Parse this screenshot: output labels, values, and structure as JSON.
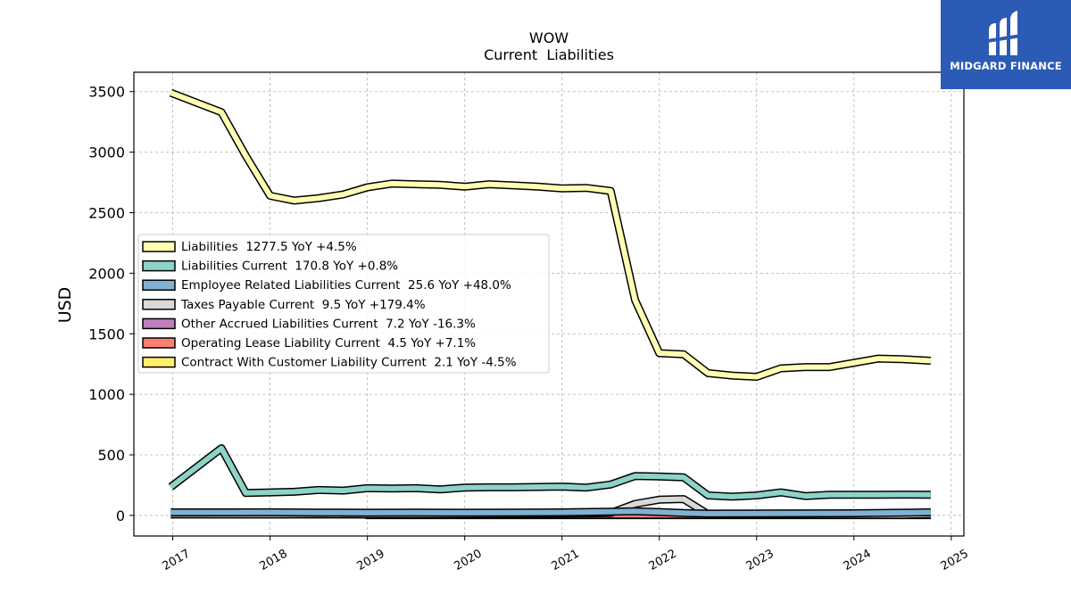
{
  "brand": {
    "name": "MIDGARD FINANCE",
    "color": "#2b5bb4"
  },
  "chart_data": {
    "type": "line",
    "title": "WOW",
    "subtitle": "Current  Liabilities",
    "ylabel": "USD",
    "xlabel": "",
    "ylim": [
      -170,
      3660
    ],
    "xlim": [
      2016.6,
      2025.13
    ],
    "grid": true,
    "legend_position": "center-left",
    "x_ticks": [
      2017,
      2018,
      2019,
      2020,
      2021,
      2022,
      2023,
      2024,
      2025
    ],
    "y_ticks": [
      0,
      500,
      1000,
      1500,
      2000,
      2500,
      3000,
      3500
    ],
    "series": [
      {
        "name": "Liabilities",
        "legend": "Liabilities  1277.5 YoY +4.5%",
        "color": "#ffffb3",
        "x": [
          2016.98,
          2017.5,
          2017.75,
          2018.0,
          2018.25,
          2018.5,
          2018.75,
          2019.0,
          2019.25,
          2019.5,
          2019.75,
          2020.0,
          2020.25,
          2020.5,
          2020.75,
          2021.0,
          2021.25,
          2021.5,
          2021.75,
          2022.0,
          2022.25,
          2022.5,
          2022.75,
          2023.0,
          2023.25,
          2023.5,
          2023.75,
          2024.0,
          2024.25,
          2024.5,
          2024.79
        ],
        "values": [
          3490,
          3330,
          2970,
          2640,
          2600,
          2620,
          2650,
          2710,
          2740,
          2735,
          2730,
          2715,
          2735,
          2725,
          2715,
          2700,
          2705,
          2680,
          1780,
          1340,
          1330,
          1175,
          1155,
          1145,
          1215,
          1225,
          1225,
          1260,
          1295,
          1290,
          1277.5
        ]
      },
      {
        "name": "Liabilities Current",
        "legend": "Liabilities Current  170.8 YoY +0.8%",
        "color": "#8dd3c7",
        "x": [
          2016.98,
          2017.5,
          2017.75,
          2018.0,
          2018.25,
          2018.5,
          2018.75,
          2019.0,
          2019.25,
          2019.5,
          2019.75,
          2020.0,
          2020.25,
          2020.5,
          2020.75,
          2021.0,
          2021.25,
          2021.5,
          2021.75,
          2022.0,
          2022.25,
          2022.5,
          2022.75,
          2023.0,
          2023.25,
          2023.5,
          2023.75,
          2024.0,
          2024.25,
          2024.5,
          2024.79
        ],
        "values": [
          235,
          555,
          185,
          190,
          195,
          210,
          205,
          225,
          222,
          225,
          215,
          230,
          232,
          232,
          235,
          238,
          230,
          255,
          325,
          322,
          315,
          165,
          155,
          165,
          190,
          160,
          170,
          170,
          170,
          172,
          170.8
        ]
      },
      {
        "name": "Employee Related Liabilities Current",
        "legend": "Employee Related Liabilities Current  25.6 YoY +48.0%",
        "color": "#80b1d3",
        "x": [
          2016.98,
          2017.5,
          2018.0,
          2018.5,
          2019.0,
          2019.5,
          2020.0,
          2020.5,
          2021.0,
          2021.5,
          2021.75,
          2022.0,
          2022.25,
          2022.5,
          2023.0,
          2023.5,
          2024.0,
          2024.5,
          2024.79
        ],
        "values": [
          25,
          25,
          26,
          24,
          22,
          23,
          22,
          24,
          25,
          30,
          35,
          28,
          20,
          15,
          16,
          17,
          18,
          22,
          25.6
        ]
      },
      {
        "name": "Taxes Payable Current",
        "legend": "Taxes Payable Current  9.5 YoY +179.4%",
        "color": "#d9d9d9",
        "x": [
          2016.98,
          2017.5,
          2018.0,
          2018.5,
          2019.0,
          2019.5,
          2020.0,
          2020.5,
          2021.0,
          2021.5,
          2021.75,
          2022.0,
          2022.25,
          2022.5,
          2023.0,
          2023.5,
          2024.0,
          2024.5,
          2024.79
        ],
        "values": [
          10,
          8,
          9,
          10,
          8,
          9,
          10,
          12,
          15,
          20,
          95,
          130,
          135,
          10,
          8,
          6,
          5,
          4,
          9.5
        ]
      },
      {
        "name": "Other Accrued Liabilities Current",
        "legend": "Other Accrued Liabilities Current  7.2 YoY -16.3%",
        "color": "#bc80bd",
        "x": [
          2016.98,
          2018.98
        ],
        "values": [
          7.2,
          7.2
        ]
      },
      {
        "name": "Operating Lease Liability Current",
        "legend": "Operating Lease Liability Current  4.5 YoY +7.1%",
        "color": "#fb8072",
        "x": [
          2019.0,
          2024.79
        ],
        "values": [
          4.5,
          4.5
        ]
      },
      {
        "name": "Contract With Customer Liability Current",
        "legend": "Contract With Customer Liability Current  2.1 YoY -4.5%",
        "color": "#ffed6f",
        "x": [
          2018.98,
          2024.79
        ],
        "values": [
          2.1,
          2.1
        ]
      }
    ]
  }
}
